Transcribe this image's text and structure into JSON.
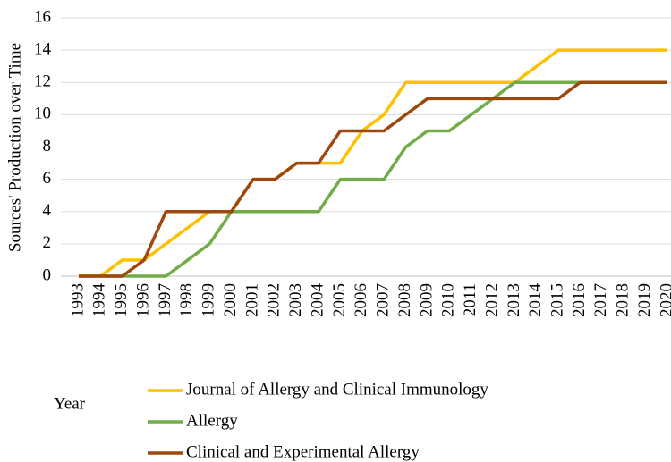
{
  "chart_data": {
    "type": "line",
    "y_label": "Sources' Production over Time",
    "x_label": "Year",
    "categories": [
      "1993",
      "1994",
      "1995",
      "1996",
      "1997",
      "1998",
      "1999",
      "2000",
      "2001",
      "2002",
      "2003",
      "2004",
      "2005",
      "2006",
      "2007",
      "2008",
      "2009",
      "2010",
      "2011",
      "2012",
      "2013",
      "2014",
      "2015",
      "2016",
      "2017",
      "2018",
      "2019",
      "2020"
    ],
    "series": [
      {
        "name": "Journal of Allergy and Clinical Immunology",
        "color": "#ffc000",
        "values": [
          0,
          0,
          1,
          1,
          2,
          3,
          4,
          4,
          6,
          6,
          7,
          7,
          7,
          9,
          10,
          12,
          12,
          12,
          12,
          12,
          12,
          13,
          14,
          14,
          14,
          14,
          14,
          14
        ]
      },
      {
        "name": "Allergy",
        "color": "#70ad47",
        "values": [
          0,
          0,
          0,
          0,
          0,
          1,
          2,
          4,
          4,
          4,
          4,
          4,
          6,
          6,
          6,
          8,
          9,
          9,
          10,
          11,
          12,
          12,
          12,
          12,
          12,
          12,
          12,
          12
        ]
      },
      {
        "name": "Clinical and Experimental Allergy",
        "color": "#9e480e",
        "values": [
          0,
          0,
          0,
          1,
          4,
          4,
          4,
          4,
          6,
          6,
          7,
          7,
          9,
          9,
          9,
          10,
          11,
          11,
          11,
          11,
          11,
          11,
          11,
          12,
          12,
          12,
          12,
          12
        ]
      }
    ],
    "ylim": [
      0,
      16
    ],
    "yticks": [
      0,
      2,
      4,
      6,
      8,
      10,
      12,
      14,
      16
    ],
    "grid": true,
    "legend": "bottom"
  }
}
